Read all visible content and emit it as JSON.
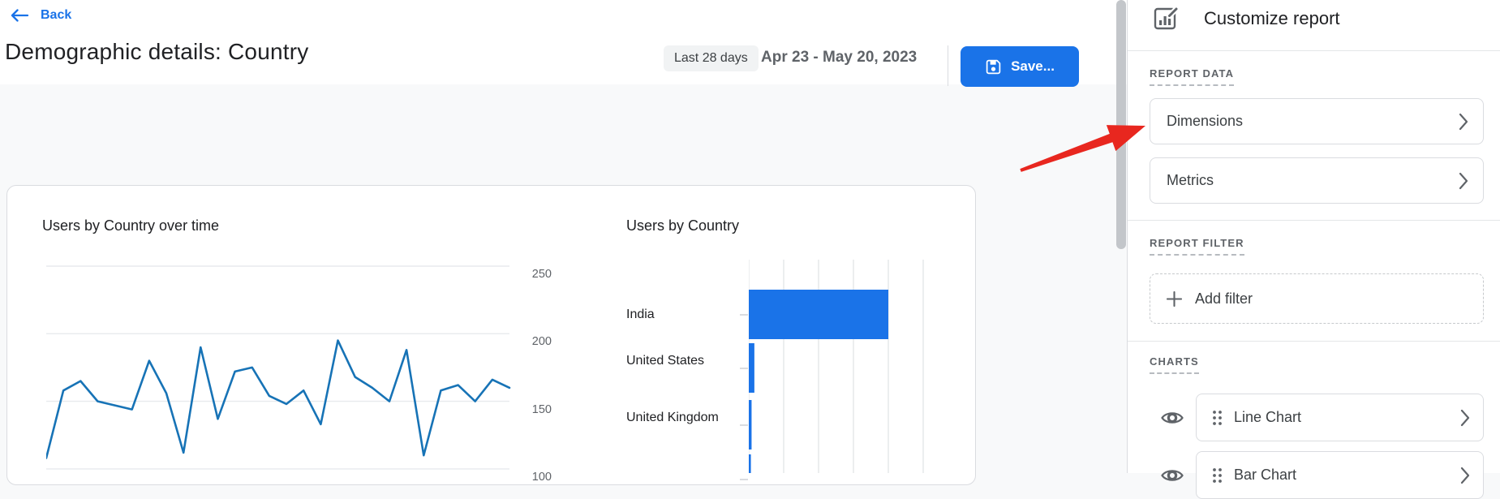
{
  "colors": {
    "accent_blue": "#1a73e8",
    "line_blue": "#1773b6",
    "bar_blue": "#1a73e8",
    "arrow_red": "#e8271f",
    "gridline": "#e8eaed"
  },
  "header": {
    "back_label": "Back",
    "page_title": "Demographic details: Country",
    "date_range_label": "Last 28 days",
    "date_range_value": "Apr 23 - May 20, 2023",
    "save_label": "Save..."
  },
  "main_card": {
    "line_chart_title": "Users by Country over time",
    "bar_chart_title": "Users by Country"
  },
  "panel": {
    "title": "Customize report",
    "report_data": {
      "label": "REPORT DATA",
      "items": [
        {
          "label": "Dimensions"
        },
        {
          "label": "Metrics"
        }
      ]
    },
    "report_filter": {
      "label": "REPORT FILTER",
      "add_filter_label": "Add filter"
    },
    "charts": {
      "label": "CHARTS",
      "items": [
        {
          "label": "Line Chart"
        },
        {
          "label": "Bar Chart"
        }
      ]
    }
  },
  "chart_data": [
    {
      "type": "line",
      "title": "Users by Country over time",
      "ylabel": "",
      "xlabel": "",
      "ylim": [
        100,
        260
      ],
      "y_ticks": [
        "250",
        "200",
        "150",
        "100"
      ],
      "y_tick_values": [
        250,
        200,
        150,
        100
      ],
      "x_tick_labels_visible": false,
      "grid": true,
      "series": [
        {
          "name": "Users",
          "values": [
            108,
            158,
            165,
            150,
            147,
            144,
            180,
            156,
            112,
            190,
            137,
            172,
            175,
            154,
            148,
            158,
            133,
            195,
            168,
            160,
            150,
            188,
            110,
            158,
            162,
            150,
            166,
            160
          ]
        }
      ]
    },
    {
      "type": "bar",
      "orientation": "horizontal",
      "title": "Users by Country",
      "categories": [
        "India",
        "United States",
        "United Kingdom",
        ""
      ],
      "values": [
        200,
        8,
        4,
        3
      ],
      "value_axis_labels_visible": false,
      "grid": true,
      "note": "fourth bar and value-axis labels are cut off by the viewport"
    }
  ]
}
